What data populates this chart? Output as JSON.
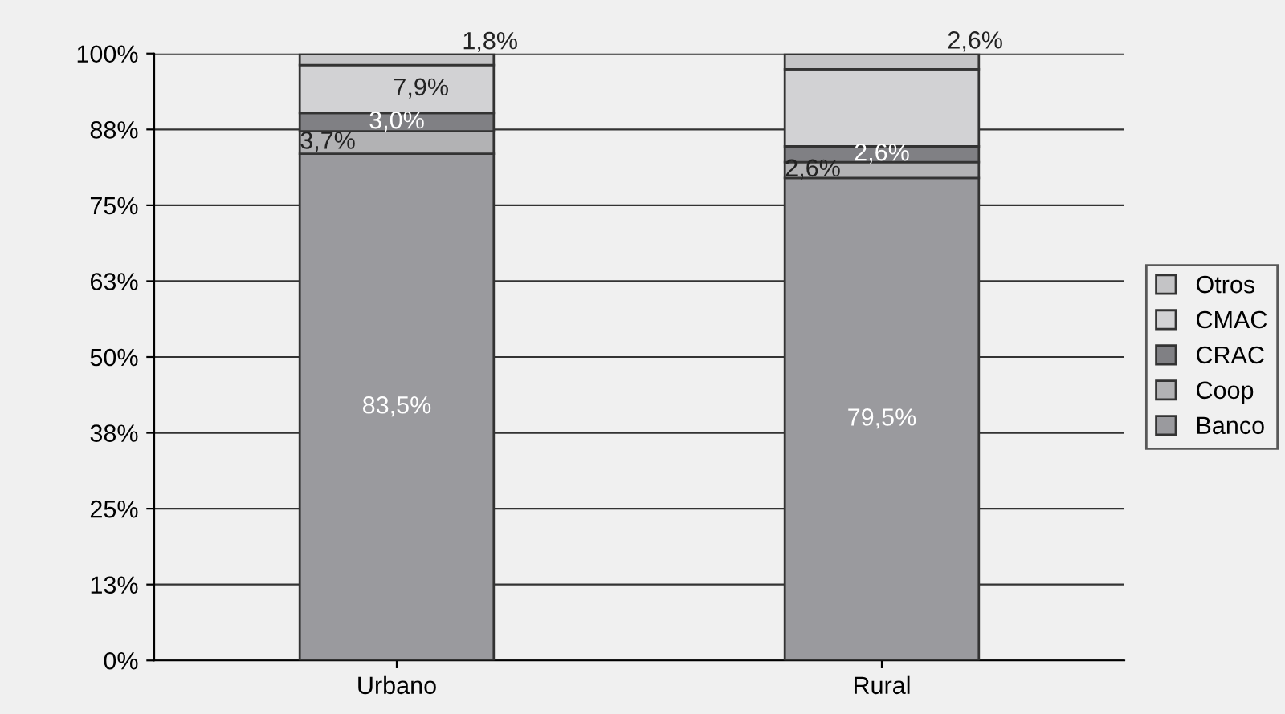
{
  "chart_data": {
    "type": "bar",
    "stacked": true,
    "categories": [
      "Urbano",
      "Rural"
    ],
    "series": [
      {
        "name": "Banco",
        "color": "#9a9a9e",
        "values": [
          83.5,
          79.5
        ],
        "value_labels": [
          "83,5%",
          "79,5%"
        ]
      },
      {
        "name": "Coop",
        "color": "#b2b2b4",
        "values": [
          3.7,
          2.6
        ],
        "value_labels": [
          "3,7%",
          "2,6%"
        ]
      },
      {
        "name": "CRAC",
        "color": "#808084",
        "values": [
          3.0,
          2.6
        ],
        "value_labels": [
          "3,0%",
          "2,6%"
        ]
      },
      {
        "name": "CMAC",
        "color": "#d2d2d4",
        "values": [
          7.9,
          12.7
        ],
        "value_labels": [
          "7,9%",
          null
        ]
      },
      {
        "name": "Otros",
        "color": "#c4c4c6",
        "values": [
          1.8,
          2.6
        ],
        "value_labels": [
          "1,8%",
          "2,6%"
        ]
      }
    ],
    "ylim": [
      0,
      100
    ],
    "yticks": [
      {
        "value": 0,
        "label": "0%"
      },
      {
        "value": 12.5,
        "label": "13%"
      },
      {
        "value": 25,
        "label": "25%"
      },
      {
        "value": 37.5,
        "label": "38%"
      },
      {
        "value": 50,
        "label": "50%"
      },
      {
        "value": 62.5,
        "label": "63%"
      },
      {
        "value": 75,
        "label": "75%"
      },
      {
        "value": 87.5,
        "label": "88%"
      },
      {
        "value": 100,
        "label": "100%"
      }
    ],
    "grid": "y",
    "legend": "right"
  }
}
